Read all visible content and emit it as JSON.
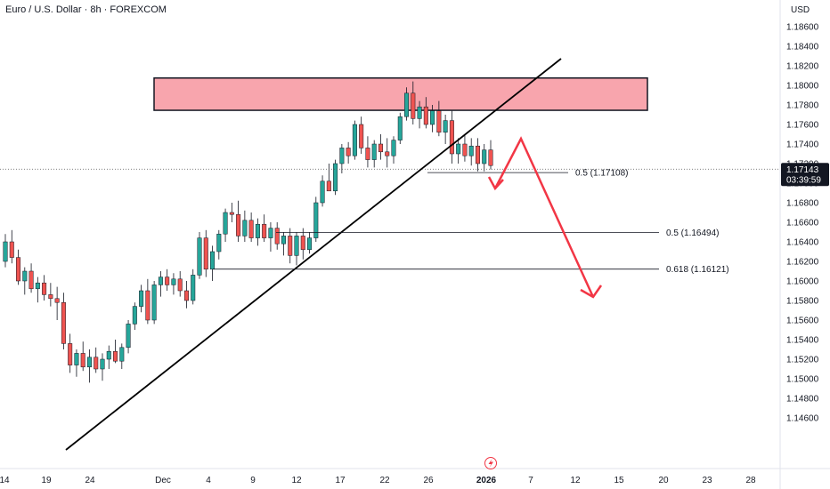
{
  "header": {
    "title": "Euro / U.S. Dollar · 8h · FOREXCOM",
    "currency": "USD"
  },
  "chart_data": {
    "type": "candlestick",
    "y_ticks": [
      "1.18600",
      "1.18400",
      "1.18200",
      "1.18000",
      "1.17800",
      "1.17600",
      "1.17400",
      "1.17200",
      "1.17000",
      "1.16800",
      "1.16600",
      "1.16400",
      "1.16200",
      "1.16000",
      "1.15800",
      "1.15600",
      "1.15400",
      "1.15200",
      "1.15000",
      "1.14800",
      "1.14600"
    ],
    "ylim": [
      1.1455,
      1.1875
    ],
    "x_ticks": [
      {
        "label": "14",
        "bold": false
      },
      {
        "label": "19",
        "bold": false
      },
      {
        "label": "24",
        "bold": false
      },
      {
        "label": "Dec",
        "bold": false
      },
      {
        "label": "4",
        "bold": false
      },
      {
        "label": "9",
        "bold": false
      },
      {
        "label": "12",
        "bold": false
      },
      {
        "label": "17",
        "bold": false
      },
      {
        "label": "22",
        "bold": false
      },
      {
        "label": "26",
        "bold": false
      },
      {
        "label": "2026",
        "bold": true
      },
      {
        "label": "7",
        "bold": false
      },
      {
        "label": "12",
        "bold": false
      },
      {
        "label": "15",
        "bold": false
      },
      {
        "label": "20",
        "bold": false
      },
      {
        "label": "23",
        "bold": false
      },
      {
        "label": "28",
        "bold": false
      }
    ],
    "current_price": {
      "value": 1.17143,
      "label": "1.17143",
      "countdown": "03:39:59"
    },
    "fib_levels": [
      {
        "label": "0.5 (1.17108)",
        "value": 1.17108
      },
      {
        "label": "0.5 (1.16494)",
        "value": 1.16494
      },
      {
        "label": "0.618 (1.16121)",
        "value": 1.16121
      }
    ],
    "resistance_zone": {
      "from": 1.17745,
      "to": 1.18075
    },
    "colors": {
      "up": "#26a69a",
      "down": "#ef5350",
      "zone": "#f8a5ad",
      "arrow": "#f23645",
      "price_tag": "#131722"
    },
    "candles_approx": [
      [
        1.162,
        1.1648,
        1.1614,
        1.164
      ],
      [
        1.164,
        1.1652,
        1.1618,
        1.1624
      ],
      [
        1.1624,
        1.1632,
        1.1596,
        1.16
      ],
      [
        1.16,
        1.1614,
        1.1586,
        1.161
      ],
      [
        1.161,
        1.1618,
        1.1588,
        1.1592
      ],
      [
        1.1592,
        1.1604,
        1.1578,
        1.1598
      ],
      [
        1.1598,
        1.1606,
        1.158,
        1.1586
      ],
      [
        1.1586,
        1.1598,
        1.1574,
        1.1582
      ],
      [
        1.1582,
        1.1594,
        1.156,
        1.1578
      ],
      [
        1.1578,
        1.1588,
        1.153,
        1.1536
      ],
      [
        1.1536,
        1.1546,
        1.1506,
        1.1514
      ],
      [
        1.1514,
        1.153,
        1.1502,
        1.1526
      ],
      [
        1.1526,
        1.1538,
        1.1508,
        1.1512
      ],
      [
        1.1512,
        1.153,
        1.1496,
        1.1522
      ],
      [
        1.1522,
        1.1532,
        1.1506,
        1.151
      ],
      [
        1.151,
        1.1526,
        1.1498,
        1.152
      ],
      [
        1.152,
        1.1534,
        1.151,
        1.1528
      ],
      [
        1.1528,
        1.154,
        1.1516,
        1.1518
      ],
      [
        1.1518,
        1.1536,
        1.151,
        1.1532
      ],
      [
        1.1532,
        1.156,
        1.1526,
        1.1556
      ],
      [
        1.1556,
        1.1578,
        1.155,
        1.1574
      ],
      [
        1.1574,
        1.1596,
        1.1568,
        1.159
      ],
      [
        1.159,
        1.1602,
        1.1556,
        1.156
      ],
      [
        1.156,
        1.16,
        1.1556,
        1.1596
      ],
      [
        1.1596,
        1.161,
        1.1584,
        1.1604
      ],
      [
        1.1604,
        1.1612,
        1.159,
        1.1596
      ],
      [
        1.1596,
        1.1608,
        1.1586,
        1.1602
      ],
      [
        1.1602,
        1.161,
        1.1584,
        1.159
      ],
      [
        1.159,
        1.16,
        1.1572,
        1.158
      ],
      [
        1.158,
        1.1612,
        1.1576,
        1.1606
      ],
      [
        1.1606,
        1.165,
        1.1602,
        1.1644
      ],
      [
        1.1644,
        1.1652,
        1.1604,
        1.1612
      ],
      [
        1.1612,
        1.1636,
        1.16,
        1.163
      ],
      [
        1.163,
        1.1652,
        1.1622,
        1.1648
      ],
      [
        1.1648,
        1.1674,
        1.164,
        1.167
      ],
      [
        1.167,
        1.168,
        1.166,
        1.1668
      ],
      [
        1.1668,
        1.1682,
        1.164,
        1.1646
      ],
      [
        1.1646,
        1.1672,
        1.164,
        1.1662
      ],
      [
        1.1662,
        1.167,
        1.164,
        1.1644
      ],
      [
        1.1644,
        1.1664,
        1.1636,
        1.1658
      ],
      [
        1.1658,
        1.1668,
        1.164,
        1.1644
      ],
      [
        1.1644,
        1.166,
        1.163,
        1.1654
      ],
      [
        1.1654,
        1.166,
        1.1632,
        1.1638
      ],
      [
        1.1638,
        1.165,
        1.1626,
        1.1646
      ],
      [
        1.1646,
        1.1654,
        1.1618,
        1.1626
      ],
      [
        1.1626,
        1.165,
        1.1616,
        1.1646
      ],
      [
        1.1646,
        1.1654,
        1.1622,
        1.1632
      ],
      [
        1.1632,
        1.165,
        1.1628,
        1.1644
      ],
      [
        1.1644,
        1.1686,
        1.164,
        1.168
      ],
      [
        1.168,
        1.1708,
        1.1676,
        1.1702
      ],
      [
        1.1702,
        1.172,
        1.1694,
        1.1692
      ],
      [
        1.1692,
        1.1724,
        1.1688,
        1.172
      ],
      [
        1.172,
        1.174,
        1.171,
        1.1736
      ],
      [
        1.1736,
        1.1742,
        1.172,
        1.1728
      ],
      [
        1.1728,
        1.1764,
        1.1724,
        1.176
      ],
      [
        1.176,
        1.1768,
        1.173,
        1.1736
      ],
      [
        1.1736,
        1.1748,
        1.1716,
        1.1724
      ],
      [
        1.1724,
        1.1744,
        1.1716,
        1.174
      ],
      [
        1.174,
        1.175,
        1.1724,
        1.1732
      ],
      [
        1.1732,
        1.1746,
        1.1716,
        1.1728
      ],
      [
        1.1728,
        1.1748,
        1.172,
        1.1744
      ],
      [
        1.1744,
        1.1772,
        1.174,
        1.1768
      ],
      [
        1.1768,
        1.1798,
        1.1764,
        1.1792
      ],
      [
        1.1792,
        1.1804,
        1.176,
        1.1766
      ],
      [
        1.1766,
        1.1784,
        1.1756,
        1.1778
      ],
      [
        1.1778,
        1.1788,
        1.1756,
        1.176
      ],
      [
        1.176,
        1.178,
        1.1752,
        1.1774
      ],
      [
        1.1774,
        1.1784,
        1.1748,
        1.1752
      ],
      [
        1.1752,
        1.177,
        1.174,
        1.1764
      ],
      [
        1.1764,
        1.1774,
        1.172,
        1.173
      ],
      [
        1.173,
        1.1746,
        1.172,
        1.174
      ],
      [
        1.174,
        1.175,
        1.1722,
        1.1728
      ],
      [
        1.1728,
        1.1746,
        1.1718,
        1.1738
      ],
      [
        1.1738,
        1.1746,
        1.1712,
        1.172
      ],
      [
        1.172,
        1.174,
        1.1712,
        1.1734
      ],
      [
        1.1734,
        1.1744,
        1.1714,
        1.1718
      ]
    ]
  }
}
